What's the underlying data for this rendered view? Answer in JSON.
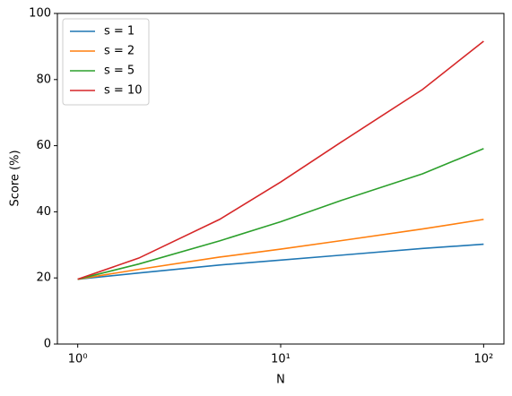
{
  "chart_data": {
    "type": "line",
    "xlabel": "N",
    "ylabel": "Score (%)",
    "x": [
      1,
      2,
      5,
      10,
      20,
      50,
      100
    ],
    "series": [
      {
        "name": "s = 1",
        "color": "#1f77b4",
        "values": [
          19.6,
          21.5,
          23.9,
          25.4,
          26.9,
          28.9,
          30.2
        ]
      },
      {
        "name": "s = 2",
        "color": "#ff7f0e",
        "values": [
          19.6,
          22.6,
          26.3,
          28.7,
          31.3,
          34.8,
          37.7
        ]
      },
      {
        "name": "s = 5",
        "color": "#2ca02c",
        "values": [
          19.6,
          24.2,
          31.2,
          37.0,
          43.5,
          51.5,
          59.1
        ]
      },
      {
        "name": "s = 10",
        "color": "#d62728",
        "values": [
          19.6,
          26.0,
          37.7,
          49.0,
          61.2,
          77.0,
          91.6
        ]
      }
    ],
    "xscale": "log",
    "xlim": [
      0.794,
      125.9
    ],
    "xticks": [
      {
        "value": 1,
        "label": "10⁰"
      },
      {
        "value": 10,
        "label": "10¹"
      },
      {
        "value": 100,
        "label": "10²"
      }
    ],
    "ylim": [
      0,
      100
    ],
    "yticks": [
      0,
      20,
      40,
      60,
      80,
      100
    ],
    "grid": false,
    "legend": "upper-left"
  }
}
